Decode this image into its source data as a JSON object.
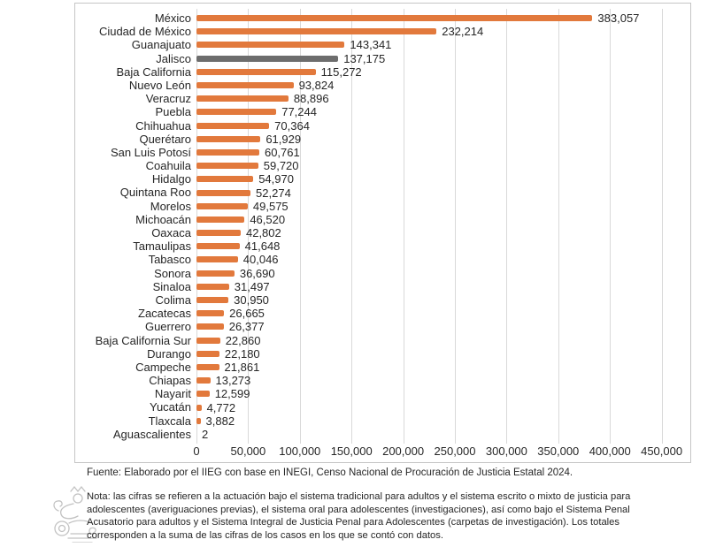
{
  "chart_data": {
    "type": "bar",
    "orientation": "horizontal",
    "title": "",
    "xlabel": "",
    "ylabel": "",
    "categories": [
      "México",
      "Ciudad de México",
      "Guanajuato",
      "Jalisco",
      "Baja California",
      "Nuevo León",
      "Veracruz",
      "Puebla",
      "Chihuahua",
      "Querétaro",
      "San Luis Potosí",
      "Coahuila",
      "Hidalgo",
      "Quintana Roo",
      "Morelos",
      "Michoacán",
      "Oaxaca",
      "Tamaulipas",
      "Tabasco",
      "Sonora",
      "Sinaloa",
      "Colima",
      "Zacatecas",
      "Guerrero",
      "Baja California Sur",
      "Durango",
      "Campeche",
      "Chiapas",
      "Nayarit",
      "Yucatán",
      "Tlaxcala",
      "Aguascalientes"
    ],
    "values": [
      383057,
      232214,
      143341,
      137175,
      115272,
      93824,
      88896,
      77244,
      70364,
      61929,
      60761,
      59720,
      54970,
      52274,
      49575,
      46520,
      42802,
      41648,
      40046,
      36690,
      31497,
      30950,
      26665,
      26377,
      22860,
      22180,
      21861,
      13273,
      12599,
      4772,
      3882,
      2
    ],
    "value_labels": [
      "383,057",
      "232,214",
      "143,341",
      "137,175",
      "115,272",
      "93,824",
      "88,896",
      "77,244",
      "70,364",
      "61,929",
      "60,761",
      "59,720",
      "54,970",
      "52,274",
      "49,575",
      "46,520",
      "42,802",
      "41,648",
      "40,046",
      "36,690",
      "31,497",
      "30,950",
      "26,665",
      "26,377",
      "22,860",
      "22,180",
      "21,861",
      "13,273",
      "12,599",
      "4,772",
      "3,882",
      "2"
    ],
    "highlight_category": "Jalisco",
    "x_ticks": [
      "0",
      "50,000",
      "100,000",
      "150,000",
      "200,000",
      "250,000",
      "300,000",
      "350,000",
      "400,000",
      "450,000"
    ],
    "xlim": [
      0,
      450000
    ],
    "grid": true,
    "legend": false
  },
  "colors": {
    "bar": "#E2793C",
    "highlight_bar": "#6D6D6D",
    "gridline": "#D9D9D9",
    "frame_border": "#C5C5C5",
    "text": "#262626"
  },
  "footer": {
    "source": "Fuente: Elaborado por el IIEG con base en INEGI, Censo Nacional de Procuración de Justicia Estatal 2024.",
    "note_lines": [
      "Nota: las cifras se refieren a la actuación bajo el sistema tradicional para adultos y el sistema escrito o mixto de justicia para",
      "adolescentes (averiguaciones previas), el sistema oral para adolescentes (investigaciones), así como bajo el Sistema Penal",
      "Acusatorio para adultos y el Sistema Integral de Justicia Penal para Adolescentes (carpetas de investigación). Los totales",
      "corresponden a la suma de las cifras de los casos en los que se contó con datos."
    ]
  }
}
